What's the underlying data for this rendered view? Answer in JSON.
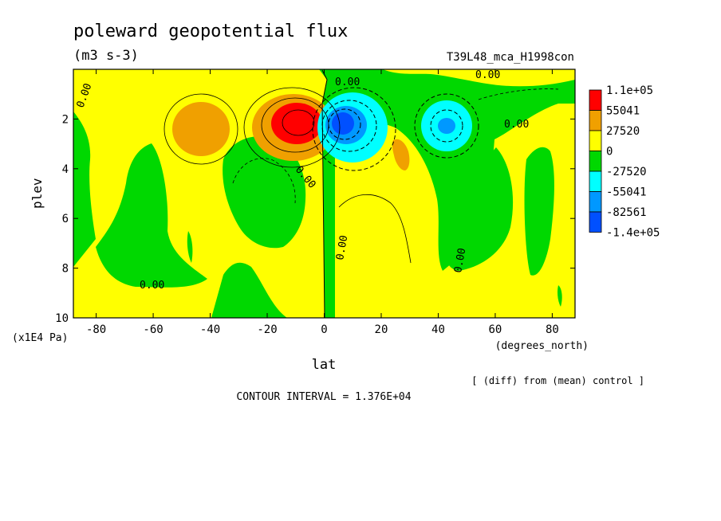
{
  "chart_data": {
    "type": "heatmap",
    "title": "poleward geopotential flux",
    "units": "(m3 s-3)",
    "run_label": "T39L48_mca_H1998con",
    "xlabel": "lat",
    "xunits": "(degrees_north)",
    "ylabel": "plev",
    "yunits": "(x1E4 Pa)",
    "xlim": [
      -88,
      88
    ],
    "ylim": [
      10,
      0
    ],
    "x_ticks": [
      -80,
      -60,
      -40,
      -20,
      0,
      20,
      40,
      60,
      80
    ],
    "y_ticks": [
      2,
      4,
      6,
      8,
      10
    ],
    "contour_interval_label": "CONTOUR INTERVAL = 1.376E+04",
    "diff_note": "[ (diff) from (mean) control ]",
    "zero_label": "0.00",
    "colorbar": {
      "labels": [
        "1.1e+05",
        "55041",
        "27520",
        "0",
        "-27520",
        "-55041",
        "-82561",
        "-1.4e+05"
      ],
      "colors": [
        "#ff0000",
        "#f0a000",
        "#ffff00",
        "#00d800",
        "#00ffff",
        "#0098ff",
        "#0050ff"
      ]
    },
    "features": [
      {
        "kind": "max",
        "lat": -9,
        "plev": 2.3,
        "value": 110000
      },
      {
        "kind": "max",
        "lat": -44,
        "plev": 2.6,
        "value": 41000
      },
      {
        "kind": "max",
        "lat": 28,
        "plev": 3.5,
        "value": 30000
      },
      {
        "kind": "min",
        "lat": 7,
        "plev": 2.4,
        "value": -140000
      },
      {
        "kind": "min",
        "lat": 42,
        "plev": 2.4,
        "value": -90000
      }
    ]
  }
}
